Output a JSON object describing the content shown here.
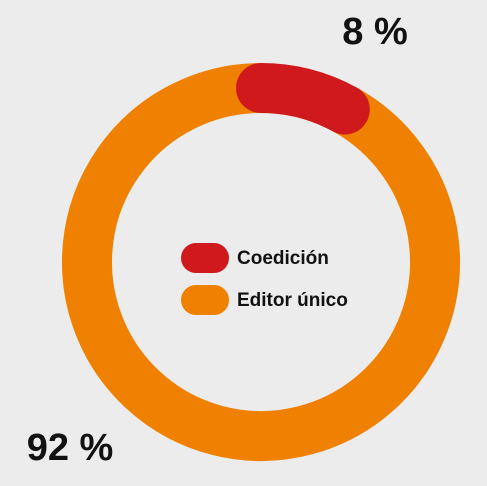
{
  "chart_data": {
    "type": "pie",
    "categories": [
      "Coedición",
      "Editor único"
    ],
    "values": [
      8,
      92
    ],
    "value_labels": [
      "8 %",
      "92 %"
    ],
    "colors": [
      "#d0191c",
      "#f08000"
    ]
  }
}
